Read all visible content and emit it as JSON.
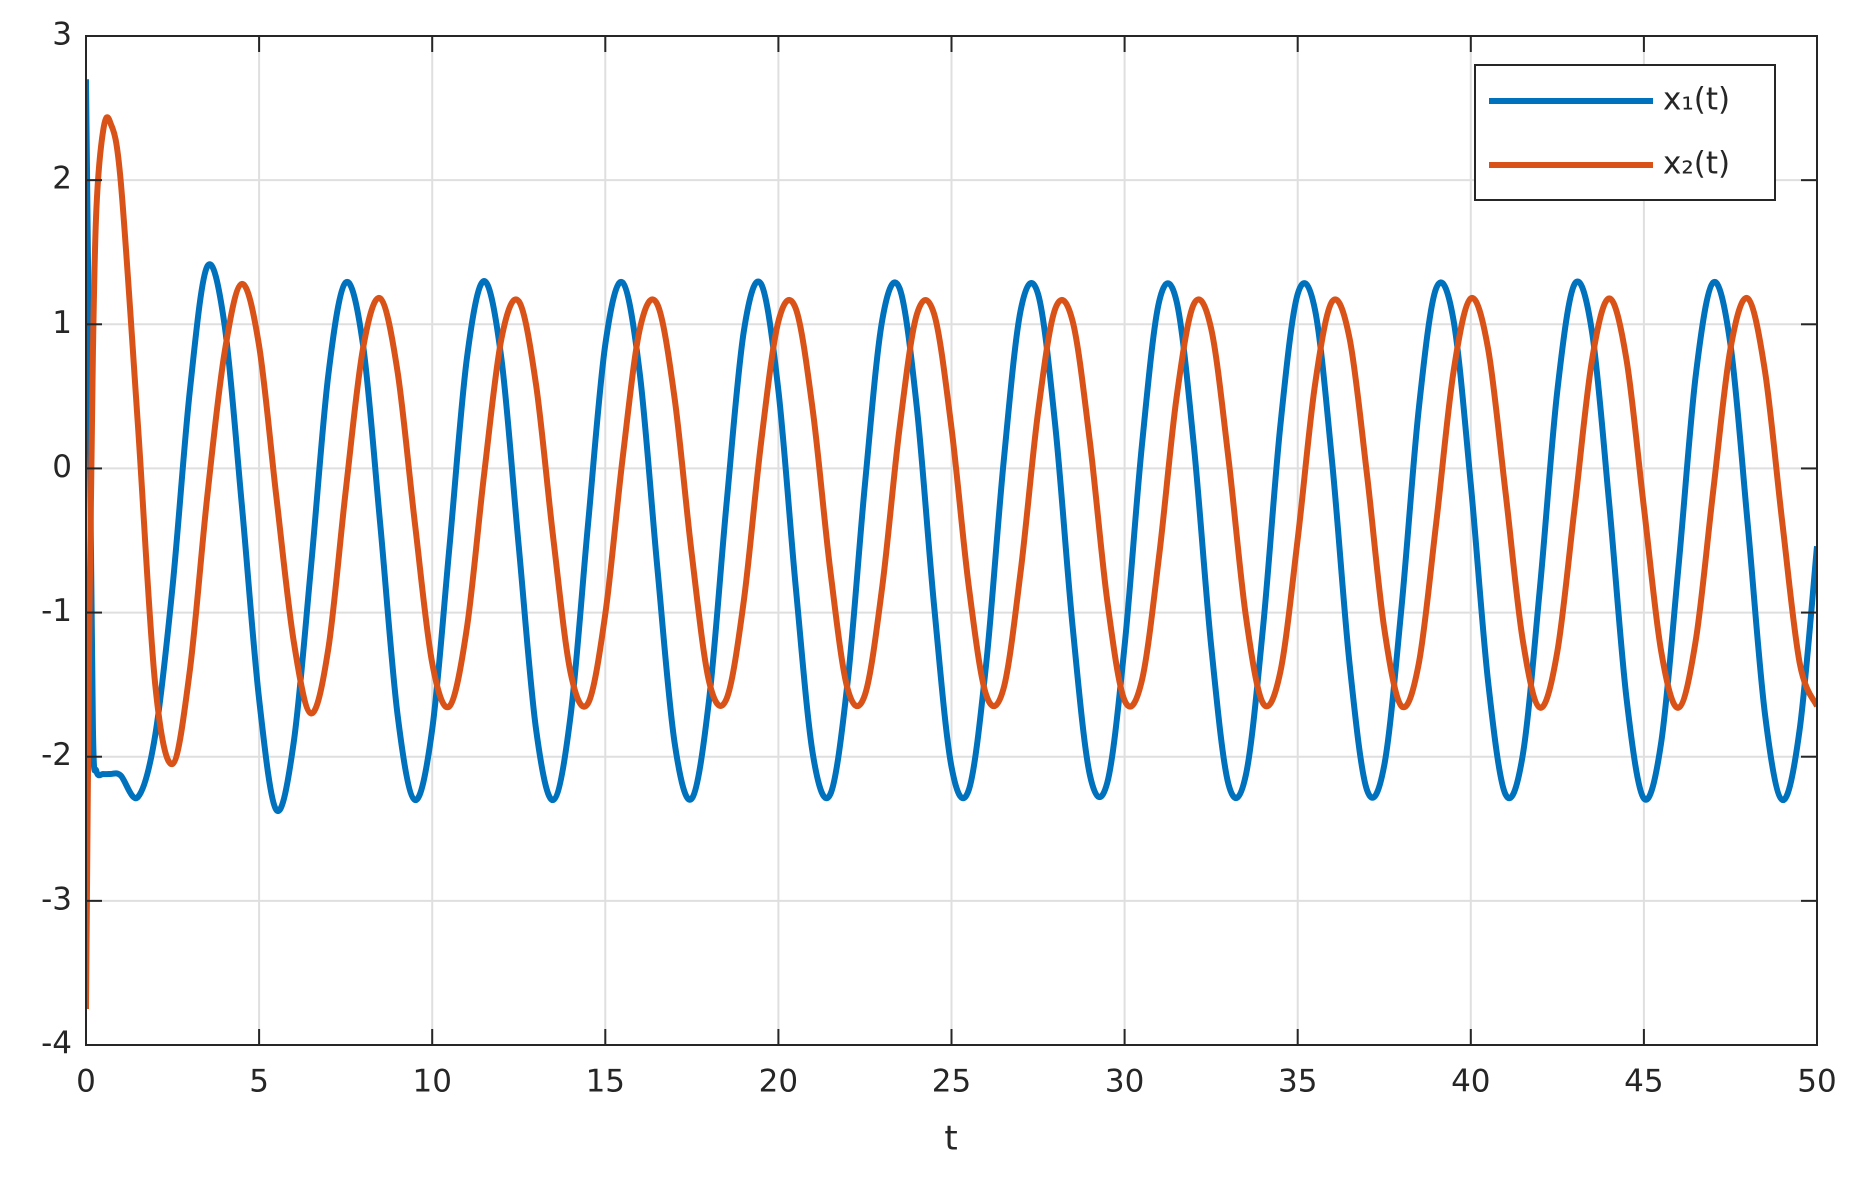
{
  "chart_data": {
    "type": "line",
    "x_label": "t",
    "x": [
      0,
      0.1,
      0.2,
      0.3,
      0.5,
      0.7,
      1,
      1.5,
      2,
      2.5,
      3,
      3.5,
      4,
      4.5,
      5,
      5.5,
      6,
      6.5,
      7,
      7.5,
      8,
      8.5,
      9,
      9.5,
      10,
      10.5,
      11,
      11.5,
      12,
      12.5,
      13,
      13.5,
      14,
      14.5,
      15,
      15.5,
      16,
      16.5,
      17,
      17.5,
      18,
      18.5,
      19,
      19.5,
      20,
      20.5,
      21,
      21.5,
      22,
      22.5,
      23,
      23.5,
      24,
      24.5,
      25,
      25.5,
      26,
      26.5,
      27,
      27.5,
      28,
      28.5,
      29,
      29.5,
      30,
      30.5,
      31,
      31.5,
      32,
      32.5,
      33,
      33.5,
      34,
      34.5,
      35,
      35.5,
      36,
      36.5,
      37,
      37.5,
      38,
      38.5,
      39,
      39.5,
      40,
      40.5,
      41,
      41.5,
      42,
      42.5,
      43,
      43.5,
      44,
      44.5,
      45,
      45.5,
      46,
      46.5,
      47,
      47.5,
      48,
      48.5,
      49,
      49.5,
      50
    ],
    "series": [
      {
        "name": "x₁(t)",
        "color": "#0072BD",
        "values": [
          2.7,
          0.5,
          -1.8,
          -2.1,
          -2.12,
          -2.12,
          -2.13,
          -2.28,
          -1.85,
          -0.82,
          0.54,
          1.4,
          1.0,
          -0.25,
          -1.6,
          -2.37,
          -1.9,
          -0.68,
          0.65,
          1.29,
          0.86,
          -0.39,
          -1.71,
          -2.3,
          -1.81,
          -0.54,
          0.76,
          1.3,
          0.76,
          -0.54,
          -1.81,
          -2.3,
          -1.71,
          -0.39,
          0.86,
          1.29,
          0.65,
          -0.68,
          -1.9,
          -2.29,
          -1.6,
          -0.25,
          0.95,
          1.28,
          0.54,
          -0.82,
          -1.99,
          -2.26,
          -1.48,
          -0.11,
          1.03,
          1.25,
          0.42,
          -0.96,
          -2.07,
          -2.23,
          -1.36,
          0.03,
          1.1,
          1.21,
          0.29,
          -1.1,
          -2.13,
          -2.18,
          -1.23,
          0.16,
          1.16,
          1.16,
          0.16,
          -1.23,
          -2.19,
          -2.13,
          -1.1,
          0.3,
          1.21,
          1.1,
          0.03,
          -1.36,
          -2.23,
          -2.06,
          -0.96,
          0.42,
          1.25,
          1.03,
          -0.11,
          -1.48,
          -2.26,
          -1.99,
          -0.82,
          0.54,
          1.28,
          0.95,
          -0.25,
          -1.6,
          -2.29,
          -1.9,
          -0.68,
          0.65,
          1.29,
          0.86,
          -0.39,
          -1.71,
          -2.3,
          -1.81,
          -0.54
        ]
      },
      {
        "name": "x₂(t)",
        "color": "#D95319",
        "values": [
          -3.75,
          -1.0,
          0.8,
          1.8,
          2.35,
          2.4,
          2.0,
          0.3,
          -1.5,
          -2.05,
          -1.4,
          -0.2,
          0.8,
          1.28,
          0.85,
          -0.2,
          -1.2,
          -1.7,
          -1.25,
          -0.16,
          0.83,
          1.18,
          0.67,
          -0.38,
          -1.35,
          -1.65,
          -1.11,
          -0.04,
          0.9,
          1.16,
          0.58,
          -0.49,
          -1.42,
          -1.63,
          -1.01,
          0.07,
          0.97,
          1.14,
          0.49,
          -0.6,
          -1.48,
          -1.6,
          -0.92,
          0.18,
          1.02,
          1.11,
          0.39,
          -0.71,
          -1.53,
          -1.57,
          -0.82,
          0.28,
          1.07,
          1.07,
          0.28,
          -0.82,
          -1.57,
          -1.53,
          -0.71,
          0.39,
          1.11,
          1.02,
          0.18,
          -0.92,
          -1.61,
          -1.47,
          -0.6,
          0.49,
          1.14,
          0.97,
          0.07,
          -1.02,
          -1.63,
          -1.41,
          -0.49,
          0.58,
          1.16,
          0.9,
          -0.04,
          -1.11,
          -1.65,
          -1.35,
          -0.38,
          0.67,
          1.18,
          0.83,
          -0.16,
          -1.19,
          -1.66,
          -1.27,
          -0.27,
          0.75,
          1.18,
          0.75,
          -0.27,
          -1.27,
          -1.66,
          -1.19,
          -0.16,
          0.83,
          1.18,
          0.67,
          -0.38,
          -1.35,
          -1.65
        ]
      }
    ],
    "xlim": [
      0,
      50
    ],
    "xticks": [
      0,
      5,
      10,
      15,
      20,
      25,
      30,
      35,
      40,
      45,
      50
    ],
    "ylim": [
      -4,
      3
    ],
    "yticks": [
      -4,
      -3,
      -2,
      -1,
      0,
      1,
      2,
      3
    ],
    "grid": true,
    "legend": "upper right"
  }
}
